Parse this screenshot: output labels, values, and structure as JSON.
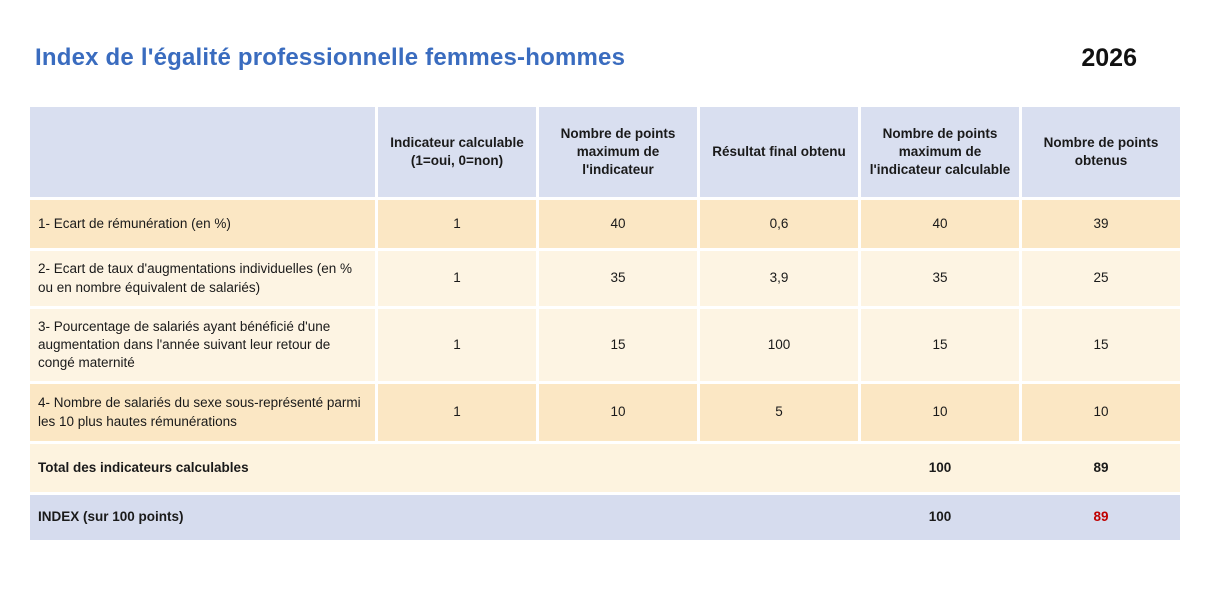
{
  "page": {
    "title": "Index de l'égalité professionnelle femmes-hommes",
    "year": "2026"
  },
  "colors": {
    "title_blue": "#3A6CBF",
    "header_bg": "#D9DFF0",
    "row_dark_bg": "#FBE7C4",
    "row_light_bg": "#FDF4E3",
    "total_row_bg": "#FDF3DF",
    "index_row_bg": "#D6DCEE",
    "index_value_red": "#C00000"
  },
  "table": {
    "headers": [
      "Indicateur calculable (1=oui, 0=non)",
      "Nombre de points maximum de l'indicateur",
      "Résultat final obtenu",
      "Nombre de points maximum de l'indicateur calculable",
      "Nombre de points obtenus"
    ],
    "rows": [
      {
        "label": "1- Ecart de rémunération (en %)",
        "calculable": "1",
        "max_points": "40",
        "resultat_final": "0,6",
        "max_points_calculable": "40",
        "points_obtenus": "39"
      },
      {
        "label": "2- Ecart de taux d'augmentations individuelles (en % ou en nombre équivalent de salariés)",
        "calculable": "1",
        "max_points": "35",
        "resultat_final": "3,9",
        "max_points_calculable": "35",
        "points_obtenus": "25"
      },
      {
        "label": "3- Pourcentage de salariés ayant bénéficié d'une augmentation dans l'année suivant leur retour de congé maternité",
        "calculable": "1",
        "max_points": "15",
        "resultat_final": "100",
        "max_points_calculable": "15",
        "points_obtenus": "15"
      },
      {
        "label": "4- Nombre de salariés du sexe sous-représenté parmi les 10 plus hautes rémunérations",
        "calculable": "1",
        "max_points": "10",
        "resultat_final": "5",
        "max_points_calculable": "10",
        "points_obtenus": "10"
      }
    ],
    "total_row": {
      "label": "Total des indicateurs calculables",
      "max_points_calculable": "100",
      "points_obtenus": "89"
    },
    "index_row": {
      "label": "INDEX (sur 100 points)",
      "max_points_calculable": "100",
      "points_obtenus": "89"
    }
  }
}
